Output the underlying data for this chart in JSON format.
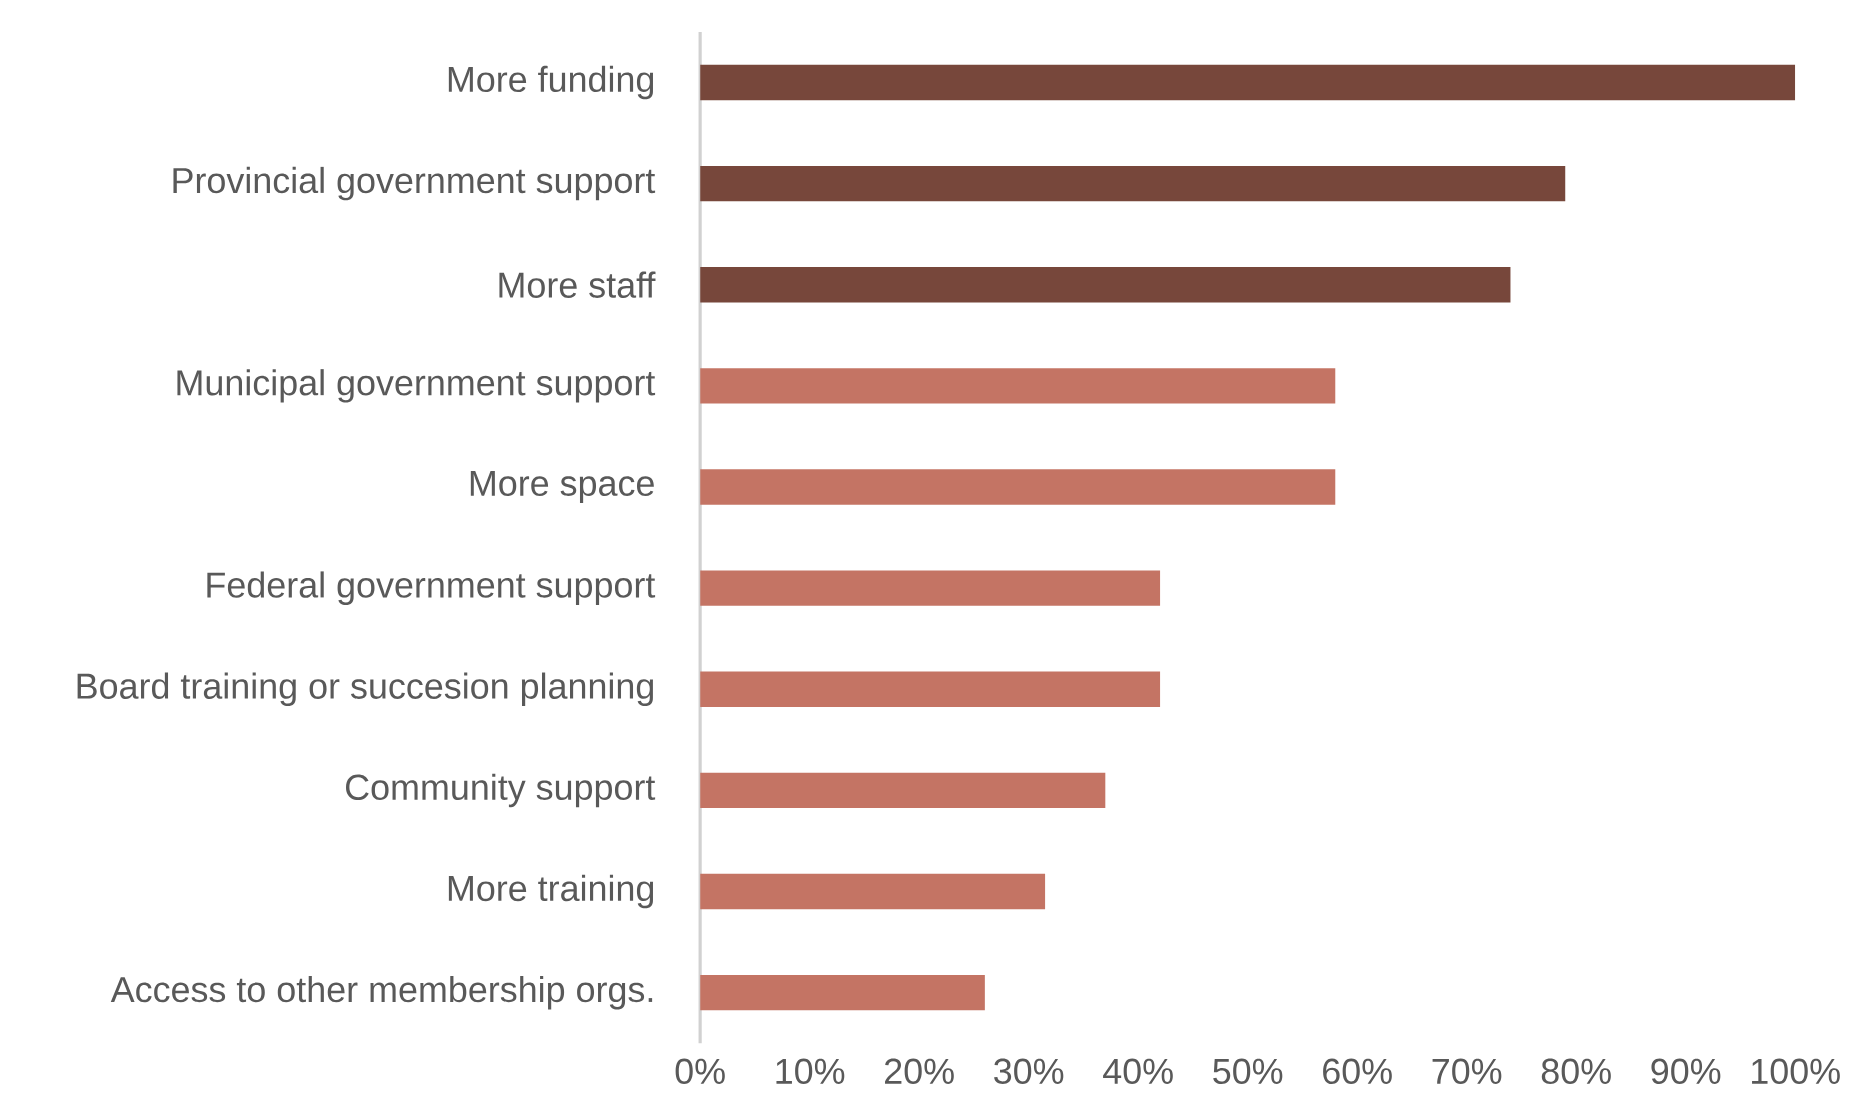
{
  "chart_data": {
    "type": "bar",
    "orientation": "horizontal",
    "categories": [
      "More funding",
      "Provincial government support",
      "More staff",
      "Municipal government support",
      "More space",
      "Federal government support",
      "Board training or succesion planning",
      "Community support",
      "More training",
      "Access to other membership orgs."
    ],
    "values": [
      100,
      79,
      74,
      58,
      58,
      42,
      42,
      37,
      31.5,
      26
    ],
    "colors": [
      "#77473b",
      "#77473b",
      "#77473b",
      "#c47464",
      "#c47464",
      "#c47464",
      "#c47464",
      "#c47464",
      "#c47464",
      "#c47464"
    ],
    "xlim": [
      0,
      100
    ],
    "xticks": [
      {
        "value": 0,
        "label": "0%"
      },
      {
        "value": 10,
        "label": "10%"
      },
      {
        "value": 20,
        "label": "20%"
      },
      {
        "value": 30,
        "label": "30%"
      },
      {
        "value": 40,
        "label": "40%"
      },
      {
        "value": 50,
        "label": "50%"
      },
      {
        "value": 60,
        "label": "60%"
      },
      {
        "value": 70,
        "label": "70%"
      },
      {
        "value": 80,
        "label": "80%"
      },
      {
        "value": 90,
        "label": "90%"
      },
      {
        "value": 100,
        "label": "100%"
      }
    ],
    "grid": false
  }
}
